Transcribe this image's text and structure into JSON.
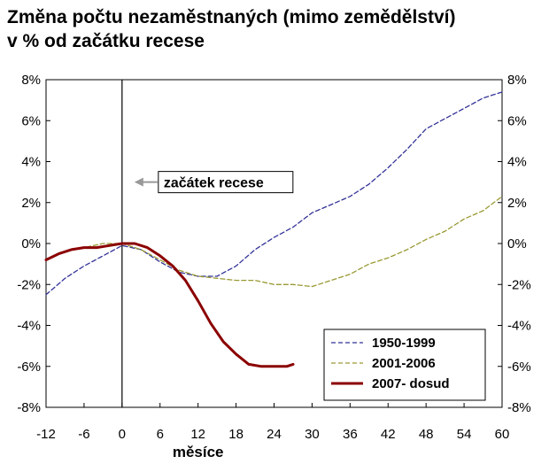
{
  "chart_data": {
    "type": "line",
    "title_line1": "Změna počtu nezaměstnaných (mimo zemědělství)",
    "title_line2": "v % od začátku recese",
    "xlabel": "měsíce",
    "ylabel": "",
    "xlim": [
      -12,
      60
    ],
    "ylim": [
      -8,
      8
    ],
    "xticks": [
      -12,
      -6,
      0,
      6,
      12,
      18,
      24,
      30,
      36,
      42,
      48,
      54,
      60
    ],
    "yticks": [
      -8,
      -6,
      -4,
      -2,
      0,
      2,
      4,
      6,
      8
    ],
    "y_tick_suffix": "%",
    "grid": false,
    "legend_position": "bottom-right",
    "annotation": {
      "text": "začátek recese",
      "x": 0,
      "y": 3
    },
    "series": [
      {
        "name": "1950-1999",
        "color": "#333399",
        "style": "dashed",
        "x": [
          -12,
          -9,
          -6,
          -3,
          0,
          3,
          6,
          9,
          12,
          15,
          18,
          21,
          24,
          27,
          30,
          33,
          36,
          39,
          42,
          45,
          48,
          51,
          54,
          57,
          60
        ],
        "y": [
          -2.5,
          -1.7,
          -1.1,
          -0.6,
          -0.1,
          -0.3,
          -0.9,
          -1.4,
          -1.6,
          -1.6,
          -1.1,
          -0.3,
          0.3,
          0.8,
          1.5,
          1.9,
          2.3,
          2.9,
          3.7,
          4.6,
          5.6,
          6.1,
          6.6,
          7.1,
          7.4
        ]
      },
      {
        "name": "2001-2006",
        "color": "#999933",
        "style": "dashed",
        "x": [
          -12,
          -9,
          -6,
          -3,
          0,
          3,
          6,
          9,
          12,
          15,
          18,
          21,
          24,
          27,
          30,
          33,
          36,
          39,
          42,
          45,
          48,
          51,
          54,
          57,
          60
        ],
        "y": [
          -0.8,
          -0.4,
          -0.2,
          0.0,
          0.0,
          -0.3,
          -0.8,
          -1.3,
          -1.6,
          -1.7,
          -1.8,
          -1.8,
          -2.0,
          -2.0,
          -2.1,
          -1.8,
          -1.5,
          -1.0,
          -0.7,
          -0.3,
          0.2,
          0.6,
          1.2,
          1.6,
          2.3
        ]
      },
      {
        "name": "2007- dosud",
        "color": "#8b0000",
        "style": "solid",
        "x": [
          -12,
          -10,
          -8,
          -6,
          -4,
          -2,
          0,
          2,
          4,
          6,
          8,
          10,
          12,
          14,
          16,
          18,
          20,
          22,
          24,
          26,
          27
        ],
        "y": [
          -0.8,
          -0.5,
          -0.3,
          -0.2,
          -0.2,
          -0.1,
          0.0,
          0.0,
          -0.2,
          -0.6,
          -1.1,
          -1.8,
          -2.8,
          -3.9,
          -4.8,
          -5.4,
          -5.9,
          -6.0,
          -6.0,
          -6.0,
          -5.9
        ]
      }
    ]
  }
}
